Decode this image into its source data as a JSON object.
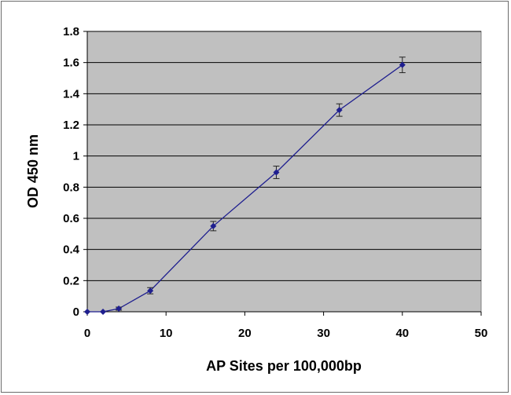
{
  "chart_data": {
    "type": "line",
    "title": "",
    "xlabel": "AP Sites per 100,000bp",
    "ylabel": "OD 450 nm",
    "xlim": [
      0,
      50
    ],
    "ylim": [
      0,
      1.8
    ],
    "x_ticks": [
      "0",
      "10",
      "20",
      "30",
      "40",
      "50"
    ],
    "y_ticks": [
      "0",
      "0.2",
      "0.4",
      "0.6",
      "0.8",
      "1",
      "1.2",
      "1.4",
      "1.6",
      "1.8"
    ],
    "grid": "horizontal",
    "plot_background": "#c0c0c0",
    "series": [
      {
        "color": "#1f1f8f",
        "marker": "diamond",
        "x": [
          0,
          2,
          4,
          8,
          16,
          24,
          32,
          40
        ],
        "y": [
          0.0,
          0.0,
          0.02,
          0.135,
          0.55,
          0.895,
          1.295,
          1.585
        ],
        "error": [
          0.0,
          0.0,
          0.01,
          0.02,
          0.03,
          0.04,
          0.04,
          0.05
        ]
      }
    ]
  }
}
